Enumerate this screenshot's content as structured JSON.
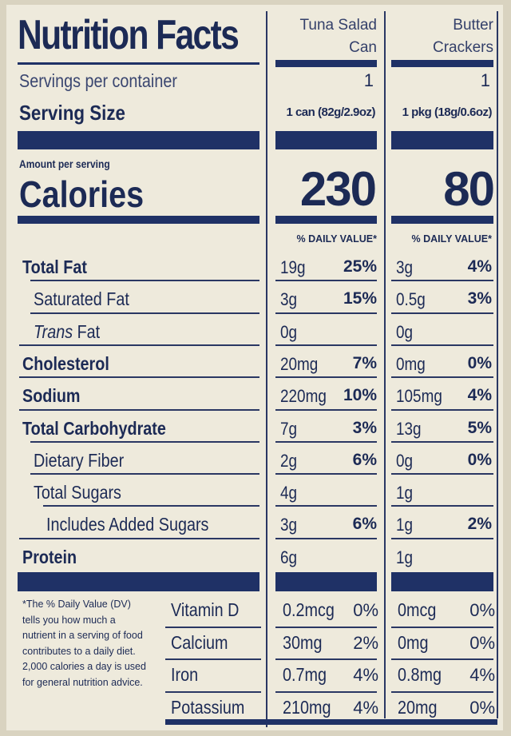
{
  "title": "Nutrition Facts",
  "columns": [
    {
      "name": "Tuna Salad Can",
      "name_line1": "Tuna Salad",
      "name_line2": "Can",
      "servings": "1",
      "serving_size": "1 can (82g/2.9oz)",
      "calories": "230"
    },
    {
      "name": "Butter Crackers",
      "name_line1": "Butter",
      "name_line2": "Crackers",
      "servings": "1",
      "serving_size": "1 pkg (18g/0.6oz)",
      "calories": "80"
    }
  ],
  "servings_label": "Servings per container",
  "serving_size_label": "Serving Size",
  "amount_label": "Amount per serving",
  "calories_label": "Calories",
  "dv_header": "% DAILY VALUE*",
  "nutrients": [
    {
      "label": "Total Fat",
      "c1": "19g",
      "p1": "25%",
      "c2": "3g",
      "p2": "4%"
    },
    {
      "label": "Saturated Fat",
      "c1": "3g",
      "p1": "15%",
      "c2": "0.5g",
      "p2": "3%"
    },
    {
      "label_italic": "Trans",
      "label_rest": " Fat",
      "c1": "0g",
      "p1": "",
      "c2": "0g",
      "p2": ""
    },
    {
      "label": "Cholesterol",
      "c1": "20mg",
      "p1": "7%",
      "c2": "0mg",
      "p2": "0%"
    },
    {
      "label": "Sodium",
      "c1": "220mg",
      "p1": "10%",
      "c2": "105mg",
      "p2": "4%"
    },
    {
      "label": "Total Carbohydrate",
      "c1": "7g",
      "p1": "3%",
      "c2": "13g",
      "p2": "5%"
    },
    {
      "label": "Dietary Fiber",
      "c1": "2g",
      "p1": "6%",
      "c2": "0g",
      "p2": "0%"
    },
    {
      "label": "Total Sugars",
      "c1": "4g",
      "p1": "",
      "c2": "1g",
      "p2": ""
    },
    {
      "label": "Includes Added Sugars",
      "c1": "3g",
      "p1": "6%",
      "c2": "1g",
      "p2": "2%"
    },
    {
      "label": "Protein",
      "c1": "6g",
      "p1": "",
      "c2": "1g",
      "p2": ""
    }
  ],
  "vitamins": [
    {
      "label": "Vitamin D",
      "c1": "0.2mcg",
      "p1": "0%",
      "c2": "0mcg",
      "p2": "0%"
    },
    {
      "label": "Calcium",
      "c1": "30mg",
      "p1": "2%",
      "c2": "0mg",
      "p2": "0%"
    },
    {
      "label": "Iron",
      "c1": "0.7mg",
      "p1": "4%",
      "c2": "0.8mg",
      "p2": "4%"
    },
    {
      "label": "Potassium",
      "c1": "210mg",
      "p1": "4%",
      "c2": "20mg",
      "p2": "0%"
    }
  ],
  "footnote": "*The % Daily Value (DV) tells you how much a nutrient in a serving of food contributes to a daily diet. 2,000 calories a day is used for general nutrition advice.",
  "colors": {
    "ink": "#1f3166",
    "paper": "#eeeadc",
    "background": "#d9d3c0"
  }
}
